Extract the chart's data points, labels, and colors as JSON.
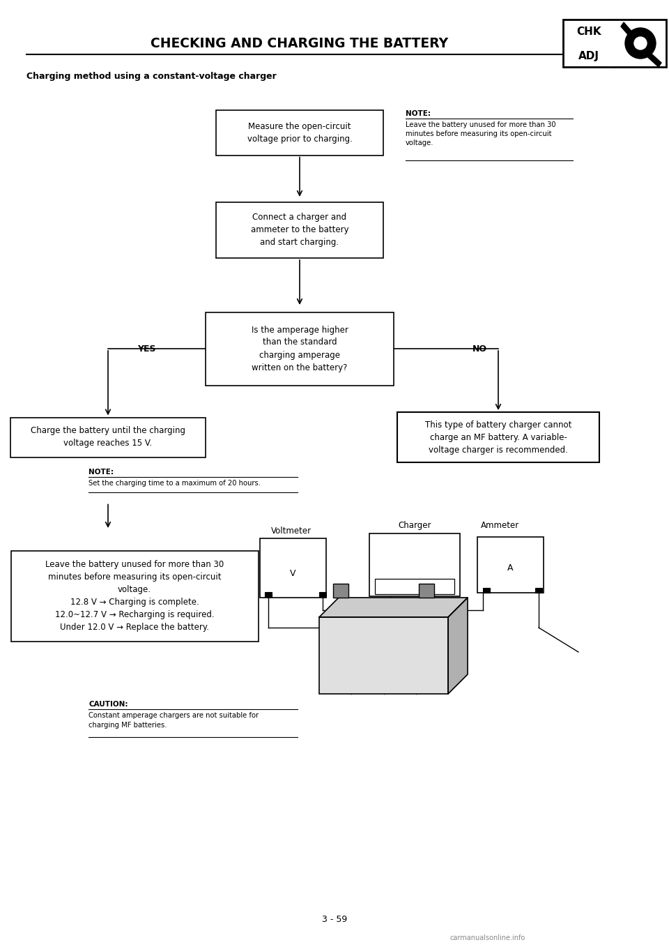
{
  "bg_color": "#ffffff",
  "title": "CHECKING AND CHARGING THE BATTERY",
  "subtitle": "Charging method using a constant-voltage charger",
  "page_number": "3 - 59",
  "box1_text": "Measure the open-circuit\nvoltage prior to charging.",
  "box2_text": "Connect a charger and\nammeter to the battery\nand start charging.",
  "box3_text": "Is the amperage higher\nthan the standard\ncharging amperage\nwritten on the battery?",
  "box4_text": "Charge the battery until the charging\nvoltage reaches 15 V.",
  "box5_text": "This type of battery charger cannot\ncharge an MF battery. A variable-\nvoltage charger is recommended.",
  "box6_text": "Leave the battery unused for more than 30\nminutes before measuring its open-circuit\nvoltage.\n12.8 V → Charging is complete.\n12.0~12.7 V → Recharging is required.\nUnder 12.0 V → Replace the battery.",
  "note1_label": "NOTE:",
  "note1_text": "Leave the battery unused for more than 30\nminutes before measuring its open-circuit\nvoltage.",
  "note2_label": "NOTE:",
  "note2_text": "Set the charging time to a maximum of 20 hours.",
  "caution_label": "CAUTION:",
  "caution_text": "Constant amperage chargers are not suitable for\ncharging MF batteries.",
  "voltmeter_label": "Voltmeter",
  "ammeter_label": "Ammeter",
  "charger_label": "Charger",
  "yes_label": "YES",
  "no_label": "NO"
}
